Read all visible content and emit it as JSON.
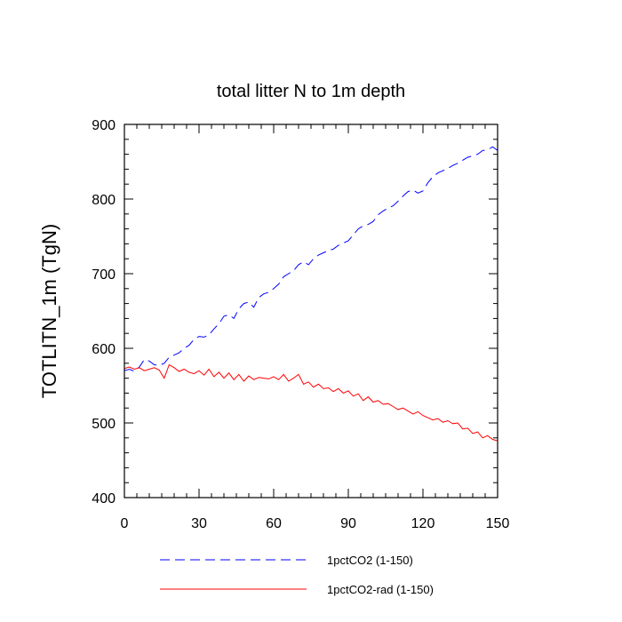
{
  "chart_data": {
    "type": "line",
    "title": "total litter N to 1m depth",
    "xlabel": "",
    "ylabel": "TOTLITN_1m  (TgN)",
    "xlim": [
      0,
      150
    ],
    "ylim": [
      400,
      900
    ],
    "x_ticks": [
      0,
      30,
      60,
      90,
      120,
      150
    ],
    "y_ticks": [
      400,
      500,
      600,
      700,
      800,
      900
    ],
    "grid": false,
    "legend_position": "bottom",
    "series": [
      {
        "name": "1pctCO2 (1-150)",
        "color": "#0000ff",
        "dash": "dashed",
        "x": [
          0,
          2,
          4,
          6,
          8,
          10,
          12,
          14,
          16,
          18,
          20,
          22,
          24,
          26,
          28,
          30,
          32,
          34,
          36,
          38,
          40,
          42,
          44,
          46,
          48,
          50,
          52,
          54,
          56,
          58,
          60,
          62,
          64,
          66,
          68,
          70,
          72,
          74,
          76,
          78,
          80,
          82,
          84,
          86,
          88,
          90,
          92,
          94,
          96,
          98,
          100,
          102,
          104,
          106,
          108,
          110,
          112,
          114,
          116,
          118,
          120,
          122,
          124,
          126,
          128,
          130,
          132,
          134,
          136,
          138,
          140,
          142,
          144,
          146,
          148,
          150
        ],
        "y": [
          570,
          572,
          569,
          575,
          585,
          583,
          578,
          577,
          580,
          588,
          591,
          594,
          600,
          604,
          612,
          616,
          615,
          618,
          626,
          633,
          643,
          645,
          640,
          653,
          660,
          662,
          655,
          668,
          673,
          675,
          680,
          686,
          696,
          700,
          704,
          712,
          716,
          712,
          720,
          725,
          728,
          731,
          733,
          738,
          741,
          744,
          752,
          760,
          764,
          766,
          770,
          779,
          784,
          788,
          791,
          797,
          804,
          810,
          812,
          808,
          811,
          822,
          830,
          835,
          838,
          841,
          845,
          848,
          852,
          856,
          858,
          860,
          865,
          866,
          870,
          865
        ]
      },
      {
        "name": "1pctCO2-rad (1-150)",
        "color": "#ff0000",
        "dash": "solid",
        "x": [
          0,
          2,
          4,
          6,
          8,
          10,
          12,
          14,
          16,
          18,
          20,
          22,
          24,
          26,
          28,
          30,
          32,
          34,
          36,
          38,
          40,
          42,
          44,
          46,
          48,
          50,
          52,
          54,
          56,
          58,
          60,
          62,
          64,
          66,
          68,
          70,
          72,
          74,
          76,
          78,
          80,
          82,
          84,
          86,
          88,
          90,
          92,
          94,
          96,
          98,
          100,
          102,
          104,
          106,
          108,
          110,
          112,
          114,
          116,
          118,
          120,
          122,
          124,
          126,
          128,
          130,
          132,
          134,
          136,
          138,
          140,
          142,
          144,
          146,
          148,
          150
        ],
        "y": [
          573,
          575,
          572,
          574,
          570,
          572,
          574,
          571,
          560,
          578,
          574,
          569,
          572,
          568,
          566,
          570,
          564,
          572,
          562,
          568,
          560,
          567,
          558,
          565,
          556,
          563,
          558,
          561,
          560,
          559,
          562,
          558,
          565,
          556,
          560,
          565,
          552,
          555,
          548,
          552,
          546,
          547,
          542,
          546,
          540,
          543,
          536,
          539,
          530,
          535,
          528,
          530,
          525,
          526,
          522,
          518,
          520,
          516,
          512,
          515,
          510,
          507,
          504,
          506,
          501,
          503,
          499,
          500,
          492,
          493,
          486,
          488,
          480,
          483,
          478,
          476
        ]
      }
    ]
  }
}
